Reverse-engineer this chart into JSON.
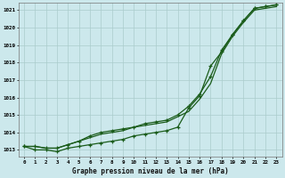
{
  "title": "Graphe pression niveau de la mer (hPa)",
  "bg_color": "#cce8ec",
  "grid_color": "#aacccc",
  "line_color": "#1a5c1a",
  "x_labels": [
    "0",
    "1",
    "2",
    "3",
    "4",
    "5",
    "6",
    "7",
    "8",
    "9",
    "10",
    "11",
    "12",
    "13",
    "14",
    "15",
    "16",
    "17",
    "18",
    "19",
    "20",
    "21",
    "22",
    "23"
  ],
  "ylim": [
    1012.6,
    1021.4
  ],
  "yticks": [
    1013,
    1014,
    1015,
    1016,
    1017,
    1018,
    1019,
    1020,
    1021
  ],
  "series_top": [
    1013.2,
    1013.2,
    1013.1,
    1013.1,
    1013.3,
    1013.5,
    1013.8,
    1014.0,
    1014.1,
    1014.2,
    1014.3,
    1014.5,
    1014.6,
    1014.7,
    1015.0,
    1015.5,
    1016.2,
    1017.2,
    1018.7,
    1019.6,
    1020.4,
    1021.1,
    1021.2,
    1021.3
  ],
  "series_mid": [
    1013.2,
    1013.2,
    1013.1,
    1013.1,
    1013.3,
    1013.5,
    1013.7,
    1013.9,
    1014.0,
    1014.1,
    1014.3,
    1014.4,
    1014.5,
    1014.6,
    1014.9,
    1015.2,
    1015.9,
    1016.8,
    1018.5,
    1019.5,
    1020.3,
    1021.0,
    1021.1,
    1021.2
  ],
  "series_curved": [
    1013.2,
    1013.0,
    1013.0,
    1012.9,
    1013.1,
    1013.2,
    1013.3,
    1013.4,
    1013.5,
    1013.6,
    1013.8,
    1013.9,
    1014.0,
    1014.1,
    1014.3,
    1015.4,
    1016.1,
    1017.8,
    1018.6,
    1019.6,
    1020.4,
    1021.1,
    1021.2,
    1021.3
  ]
}
